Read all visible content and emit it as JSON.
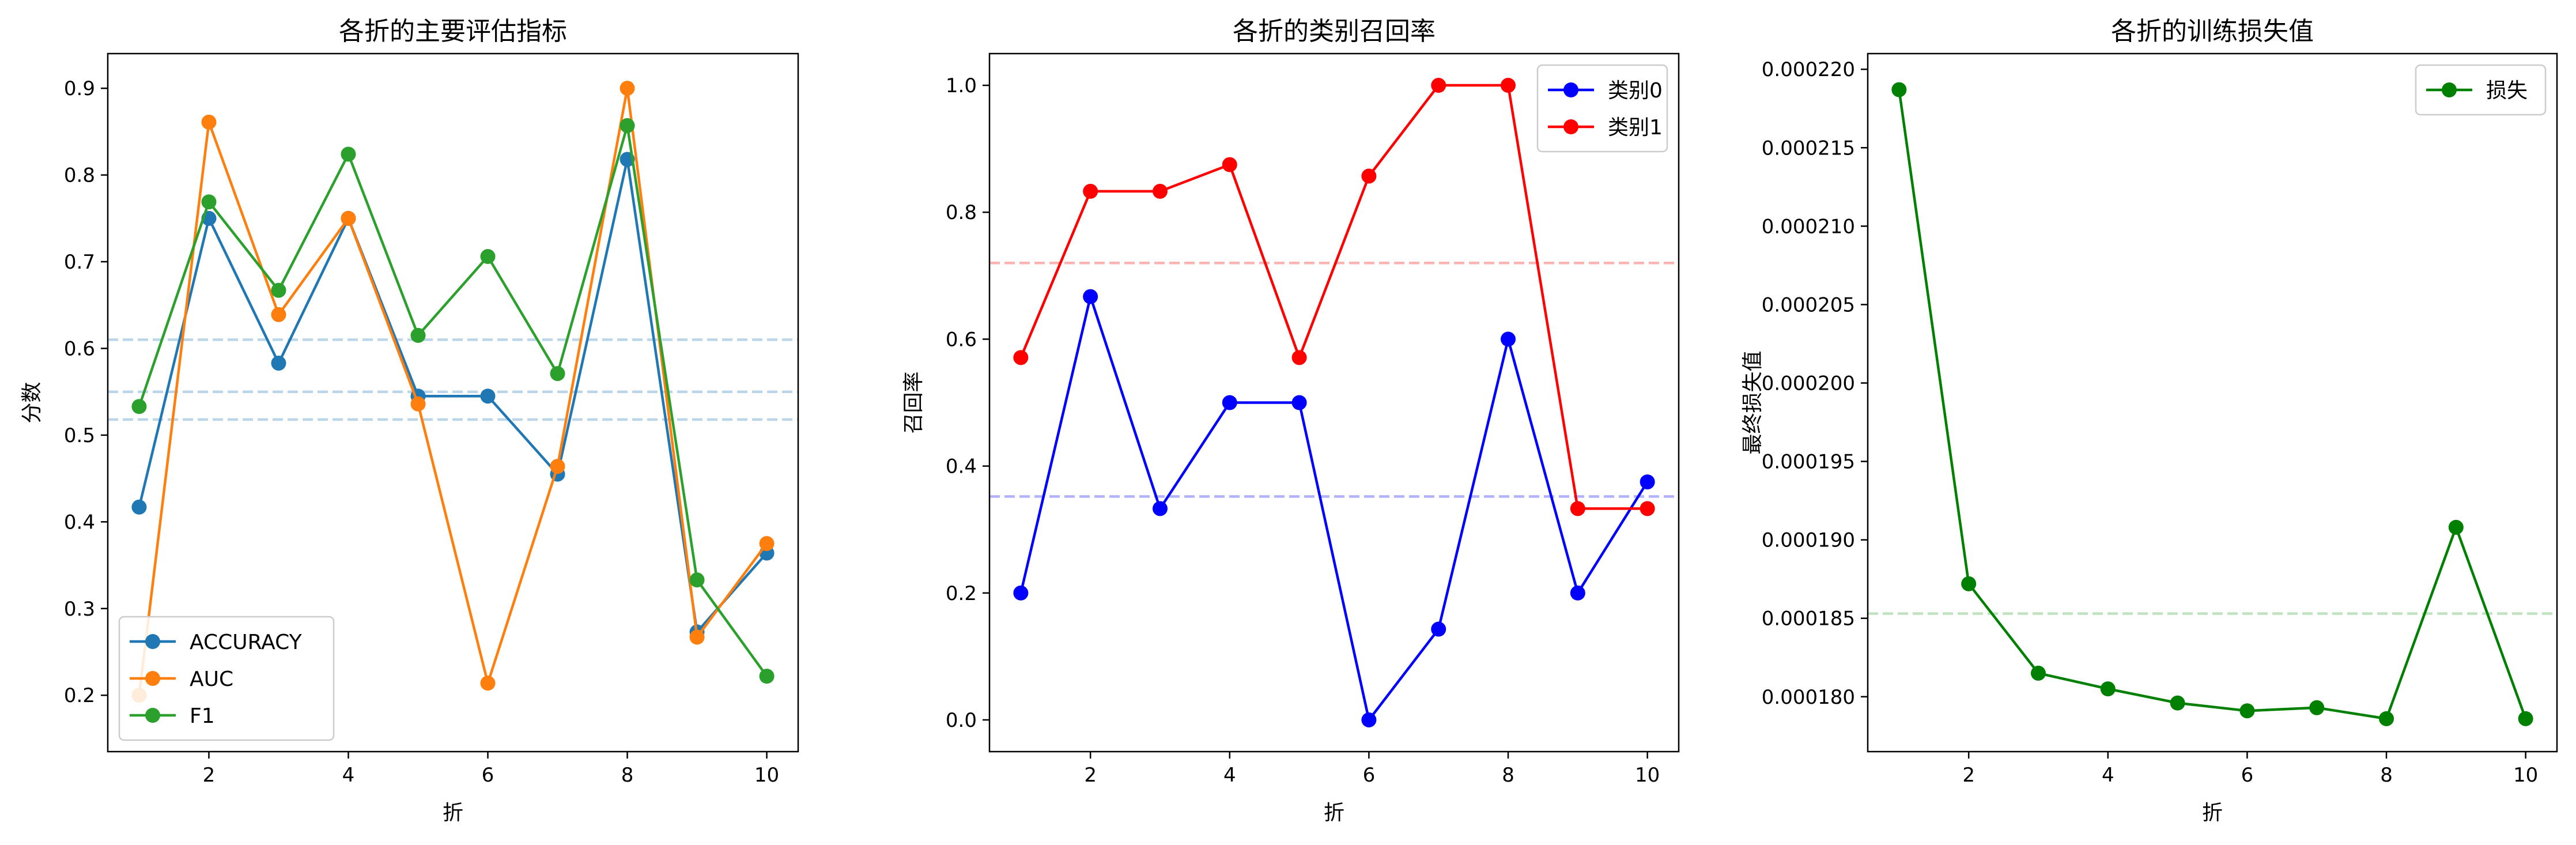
{
  "chart_data": [
    {
      "type": "line",
      "title": "各折的主要评估指标",
      "xlabel": "折",
      "ylabel": "分数",
      "xlim": [
        0.55,
        10.45
      ],
      "ylim": [
        0.135,
        0.94
      ],
      "xticks": [
        2,
        4,
        6,
        8,
        10
      ],
      "yticks": [
        0.2,
        0.3,
        0.4,
        0.5,
        0.6,
        0.7,
        0.8,
        0.9
      ],
      "ytick_format": 1,
      "legend": "lower-left",
      "x": [
        1,
        2,
        3,
        4,
        5,
        6,
        7,
        8,
        9,
        10
      ],
      "series": [
        {
          "name": "ACCURACY",
          "color": "#1f77b4",
          "values": [
            0.417,
            0.75,
            0.583,
            0.75,
            0.545,
            0.545,
            0.455,
            0.818,
            0.273,
            0.364
          ]
        },
        {
          "name": "AUC",
          "color": "#ff7f0e",
          "values": [
            0.2,
            0.861,
            0.639,
            0.75,
            0.536,
            0.214,
            0.464,
            0.9,
            0.267,
            0.375
          ]
        },
        {
          "name": "F1",
          "color": "#2ca02c",
          "values": [
            0.533,
            0.769,
            0.667,
            0.824,
            0.615,
            0.706,
            0.571,
            0.857,
            0.333,
            0.222
          ]
        }
      ],
      "hlines": [
        {
          "y": 0.61,
          "color": "#1f77b4"
        },
        {
          "y": 0.55,
          "color": "#1f77b4"
        },
        {
          "y": 0.518,
          "color": "#1f77b4"
        }
      ]
    },
    {
      "type": "line",
      "title": "各折的类别召回率",
      "xlabel": "折",
      "ylabel": "召回率",
      "xlim": [
        0.55,
        10.45
      ],
      "ylim": [
        -0.05,
        1.05
      ],
      "xticks": [
        2,
        4,
        6,
        8,
        10
      ],
      "yticks": [
        0.0,
        0.2,
        0.4,
        0.6,
        0.8,
        1.0
      ],
      "ytick_format": 1,
      "legend": "top-right",
      "x": [
        1,
        2,
        3,
        4,
        5,
        6,
        7,
        8,
        9,
        10
      ],
      "series": [
        {
          "name": "类别0",
          "color": "#0000ff",
          "values": [
            0.2,
            0.667,
            0.333,
            0.5,
            0.5,
            0.0,
            0.143,
            0.6,
            0.2,
            0.375
          ]
        },
        {
          "name": "类别1",
          "color": "#ff0000",
          "values": [
            0.571,
            0.833,
            0.833,
            0.875,
            0.571,
            0.857,
            1.0,
            1.0,
            0.333,
            0.333
          ]
        }
      ],
      "hlines": [
        {
          "y": 0.352,
          "color": "#0000ff"
        },
        {
          "y": 0.72,
          "color": "#ff0000"
        }
      ]
    },
    {
      "type": "line",
      "title": "各折的训练损失值",
      "xlabel": "折",
      "ylabel": "最终损失值",
      "xlim": [
        0.55,
        10.45
      ],
      "ylim": [
        0.0001765,
        0.000221
      ],
      "xticks": [
        2,
        4,
        6,
        8,
        10
      ],
      "yticks": [
        0.00018,
        0.000185,
        0.00019,
        0.000195,
        0.0002,
        0.000205,
        0.00021,
        0.000215,
        0.00022
      ],
      "ytick_format": 6,
      "legend": "top-right",
      "x": [
        1,
        2,
        3,
        4,
        5,
        6,
        7,
        8,
        9,
        10
      ],
      "series": [
        {
          "name": "损失",
          "color": "#008000",
          "values": [
            0.0002187,
            0.0001872,
            0.0001815,
            0.0001805,
            0.0001796,
            0.0001791,
            0.0001793,
            0.0001786,
            0.0001908,
            0.0001786
          ]
        }
      ],
      "hlines": [
        {
          "y": 0.0001853,
          "color": "#2ca02c"
        }
      ]
    }
  ]
}
